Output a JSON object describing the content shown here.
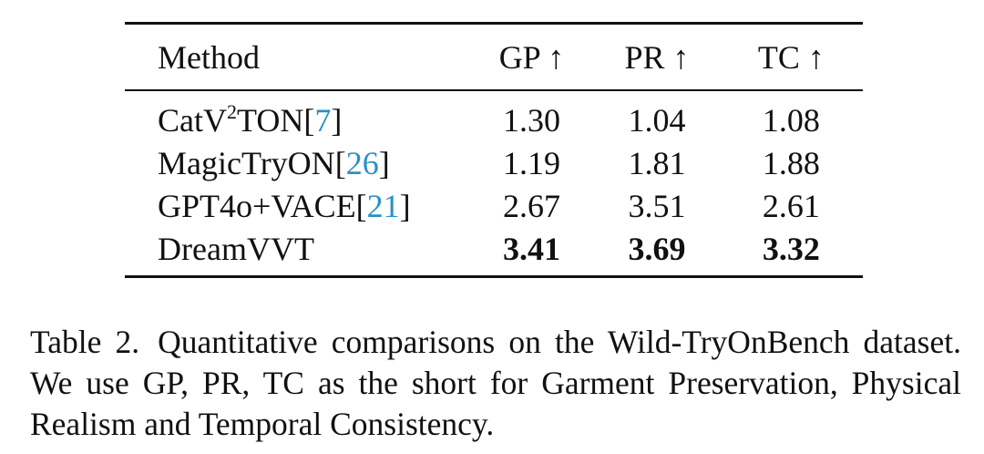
{
  "table": {
    "headers": {
      "method": "Method",
      "gp": "GP ↑",
      "pr": "PR ↑",
      "tc": "TC ↑"
    },
    "rows": [
      {
        "method_pre": "CatV",
        "method_sup": "2",
        "method_post": "TON",
        "cite_open": "[",
        "cite": "7",
        "cite_close": "]",
        "gp": "1.30",
        "pr": "1.04",
        "tc": "1.08",
        "bold": false
      },
      {
        "method_pre": "MagicTryON",
        "cite_open": "[",
        "cite": "26",
        "cite_close": "]",
        "gp": "1.19",
        "pr": "1.81",
        "tc": "1.88",
        "bold": false
      },
      {
        "method_pre": "GPT4o+VACE",
        "cite_open": "[",
        "cite": "21",
        "cite_close": "]",
        "gp": "2.67",
        "pr": "3.51",
        "tc": "2.61",
        "bold": false
      },
      {
        "method_pre": "DreamVVT",
        "gp": "3.41",
        "pr": "3.69",
        "tc": "3.32",
        "bold": true
      }
    ]
  },
  "caption": {
    "label": "Table 2.",
    "text": "Quantitative comparisons on the Wild-TryOnBench dataset. We use GP, PR, TC as the short for Garment Preservation, Physical Realism and Temporal Consistency."
  },
  "colors": {
    "citation": "#2a8fc9",
    "text": "#111111"
  }
}
